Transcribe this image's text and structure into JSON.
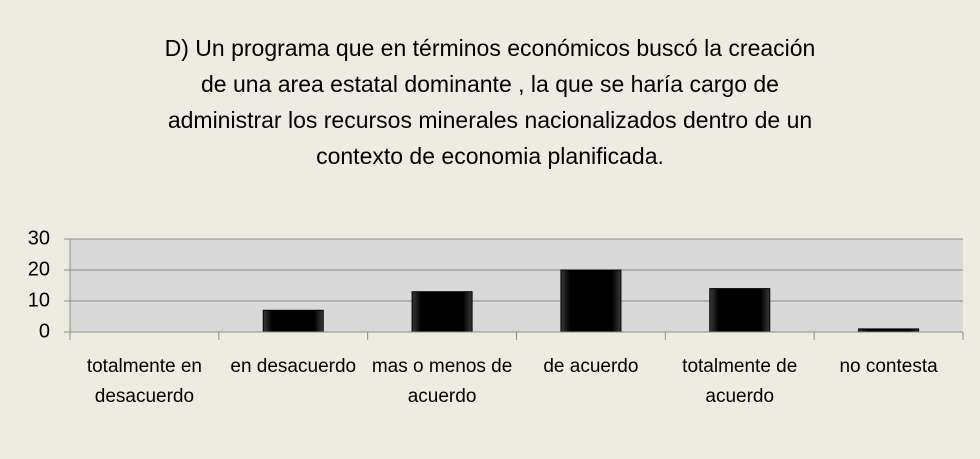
{
  "chart_data": {
    "type": "bar",
    "title": "D) Un programa que en términos económicos buscó la creación de una area estatal dominante , la que se haría cargo de administrar los recursos minerales nacionalizados dentro de un contexto de economia planificada.",
    "categories": [
      "totalmente en desacuerdo",
      "en desacuerdo",
      "mas o menos de acuerdo",
      "de acuerdo",
      "totalmente de acuerdo",
      "no contesta"
    ],
    "values": [
      0,
      7,
      13,
      20,
      14,
      1
    ],
    "color": "#000000",
    "ylim": [
      0,
      30
    ],
    "yticks": [
      0,
      10,
      20,
      30
    ],
    "grid": true
  }
}
